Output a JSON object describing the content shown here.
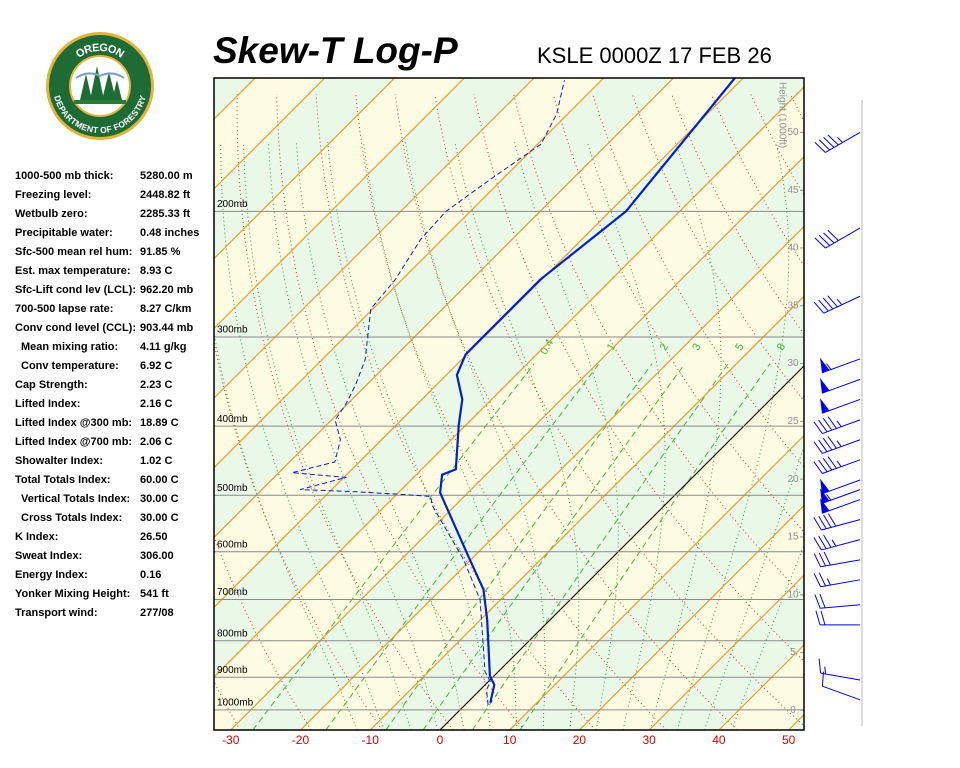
{
  "header": {
    "title": "Skew-T Log-P",
    "subtitle": "KSLE 0000Z 17 FEB 26"
  },
  "logo": {
    "top": "OREGON",
    "bottom": "DEPARTMENT OF FORESTRY"
  },
  "indices": [
    {
      "label": "1000-500 mb thick:",
      "value": "5280.00 m"
    },
    {
      "label": "Freezing level:",
      "value": "2448.82 ft"
    },
    {
      "label": "Wetbulb zero:",
      "value": "2285.33 ft"
    },
    {
      "label": "Precipitable water:",
      "value": "0.48 inches"
    },
    {
      "label": "Sfc-500 mean rel hum:",
      "value": "91.85 %"
    },
    {
      "label": "Est. max temperature:",
      "value": "8.93 C"
    },
    {
      "label": "Sfc-Lift cond lev (LCL):",
      "value": "962.20 mb"
    },
    {
      "label": "700-500 lapse rate:",
      "value": "8.27 C/km"
    },
    {
      "label": "Conv cond level (CCL):",
      "value": "903.44 mb"
    },
    {
      "label": "Mean mixing ratio:",
      "value": "4.11 g/kg",
      "indent": true
    },
    {
      "label": "Conv temperature:",
      "value": "6.92 C",
      "indent": true
    },
    {
      "label": "Cap Strength:",
      "value": "2.23 C"
    },
    {
      "label": "Lifted Index:",
      "value": "2.16 C"
    },
    {
      "label": "Lifted Index @300 mb:",
      "value": "18.89 C"
    },
    {
      "label": "Lifted Index @700 mb:",
      "value": "2.06 C"
    },
    {
      "label": "Showalter Index:",
      "value": "1.02 C"
    },
    {
      "label": "Total Totals Index:",
      "value": "60.00 C"
    },
    {
      "label": "Vertical Totals Index:",
      "value": "30.00 C",
      "indent": true
    },
    {
      "label": "Cross Totals Index:",
      "value": "30.00 C",
      "indent": true
    },
    {
      "label": "K Index:",
      "value": "26.50"
    },
    {
      "label": "Sweat Index:",
      "value": "306.00"
    },
    {
      "label": "Energy Index:",
      "value": "0.16"
    },
    {
      "label": "Yonker Mixing Height:",
      "value": "541 ft"
    },
    {
      "label": "Transport wind:",
      "value": "277/08"
    }
  ],
  "chart_data": {
    "type": "skewt",
    "xlim": [
      -32.4,
      52.2
    ],
    "xticks": [
      -30,
      -20,
      -10,
      0,
      10,
      20,
      30,
      40,
      50
    ],
    "ylim": [
      1067,
      130
    ],
    "log_y": true,
    "yticks": [
      {
        "value": 1000,
        "label": "1000mb"
      },
      {
        "value": 900,
        "label": "900mb"
      },
      {
        "value": 800,
        "label": "800mb"
      },
      {
        "value": 700,
        "label": "700mb"
      },
      {
        "value": 600,
        "label": "600mb"
      },
      {
        "value": 500,
        "label": "500mb"
      },
      {
        "value": 400,
        "label": "400mb"
      },
      {
        "value": 300,
        "label": "300mb"
      },
      {
        "value": 200,
        "label": "200mb"
      }
    ],
    "y2label": "Height (1000ft)",
    "y2lim": [
      -1.7,
      54.7
    ],
    "y2ticks": [
      0,
      5,
      10,
      15,
      20,
      25,
      30,
      35,
      40,
      45,
      50
    ],
    "mixing_ratio": {
      "color": "#3cb83c",
      "values": [
        0.4,
        1,
        2,
        3,
        5,
        8
      ]
    },
    "series": [
      {
        "color": "#0022cc",
        "style": "solid",
        "x": [
          3.3,
          1.3,
          -0.6,
          -9.0,
          -13.9,
          -20.1,
          -34.0,
          -36.3,
          -35.1,
          -41.1,
          -44.2,
          -48.5,
          -50.2,
          -50.2,
          -50.2,
          -47.7,
          -51.2
        ],
        "y": [
          977,
          922,
          896,
          748,
          678,
          616,
          496,
          468,
          460,
          398,
          367,
          339,
          317,
          302,
          249,
          200,
          130
        ]
      },
      {
        "color": "#0022cc",
        "style": "dashed",
        "x": [
          3.3,
          0.9,
          0.3,
          -1.9,
          -12.9,
          -21.0,
          -30.1,
          -33.4,
          -34.8,
          -38.7,
          -47.0,
          -54.5,
          -49.7,
          -58.1,
          -53.5,
          -55.9,
          -59.5,
          -60.2,
          -61.6,
          -63.8,
          -70.3,
          -71.0,
          -73.1,
          -73.5,
          -71.7,
          -69.5,
          -71.6,
          -75.3
        ],
        "y": [
          984,
          937,
          913,
          884,
          701,
          616,
          541,
          516,
          502,
          499,
          494,
          491,
          472,
          465,
          449,
          418,
          392,
          373,
          350,
          323,
          274,
          249,
          219,
          200,
          180,
          161,
          146,
          131
        ]
      }
    ],
    "winds": {
      "color": "#0000ee",
      "p": [
        155,
        211,
        263,
        322,
        344,
        367,
        392,
        418,
        446,
        476,
        491,
        507,
        541,
        577,
        616,
        657,
        712,
        760,
        908,
        968
      ],
      "direction": [
        240,
        240,
        245,
        250,
        250,
        250,
        250,
        250,
        250,
        250,
        250,
        250,
        255,
        255,
        260,
        260,
        265,
        270,
        280,
        290
      ],
      "speed": [
        45,
        40,
        45,
        55,
        50,
        50,
        45,
        45,
        45,
        50,
        55,
        50,
        40,
        35,
        30,
        25,
        20,
        20,
        15,
        10
      ]
    }
  }
}
